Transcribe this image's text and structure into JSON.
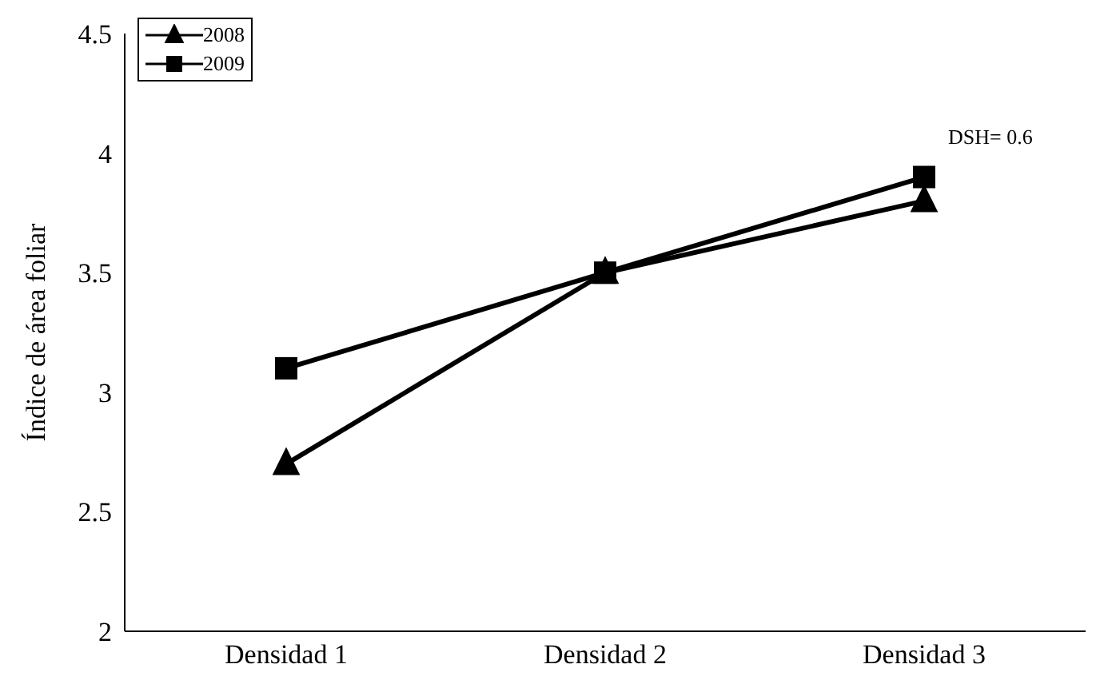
{
  "chart_data": {
    "type": "line",
    "ylabel": "Índice de área foliar",
    "categories": [
      "Densidad 1",
      "Densidad 2",
      "Densidad 3"
    ],
    "series": [
      {
        "name": "2008",
        "color": "#000000",
        "marker": "triangle",
        "values": [
          2.7,
          3.5,
          3.8
        ]
      },
      {
        "name": "2009",
        "color": "#000000",
        "marker": "square",
        "values": [
          3.1,
          3.5,
          3.9
        ]
      }
    ],
    "ylim": [
      2,
      4.5
    ],
    "yticks": [
      2,
      2.5,
      3,
      3.5,
      4,
      4.5
    ],
    "grid": false,
    "legend": "top left",
    "line_style": "solid",
    "annotations": [
      "DSH= 0.6"
    ]
  }
}
